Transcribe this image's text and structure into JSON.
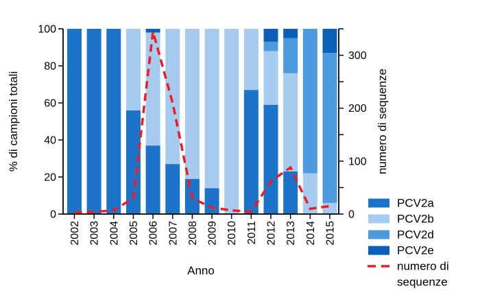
{
  "chart_data": {
    "type": "bar",
    "subtype": "stacked-100-with-line",
    "title": "",
    "xlabel": "Anno",
    "ylabel_left": "% di campioni totali",
    "ylabel_right": "numero di sequenze",
    "categories": [
      "2002",
      "2003",
      "2004",
      "2005",
      "2006",
      "2007",
      "2008",
      "2009",
      "2010",
      "2011",
      "2012",
      "2013",
      "2014",
      "2015"
    ],
    "series": [
      {
        "name": "PCV2a",
        "kind": "bar",
        "axis": "left",
        "color": "#1B74C8",
        "values": [
          100,
          100,
          100,
          56,
          37,
          27,
          19,
          14,
          0,
          67,
          59,
          23,
          0,
          0
        ]
      },
      {
        "name": "PCV2b",
        "kind": "bar",
        "axis": "left",
        "color": "#A6CBEE",
        "values": [
          0,
          0,
          0,
          44,
          61,
          73,
          81,
          86,
          100,
          33,
          29,
          53,
          22,
          6
        ]
      },
      {
        "name": "PCV2d",
        "kind": "bar",
        "axis": "left",
        "color": "#4D9BDC",
        "values": [
          0,
          0,
          0,
          0,
          0,
          0,
          0,
          0,
          0,
          0,
          5,
          19,
          78,
          81
        ]
      },
      {
        "name": "PCV2e",
        "kind": "bar",
        "axis": "left",
        "color": "#0C5FB8",
        "values": [
          0,
          0,
          0,
          0,
          2,
          0,
          0,
          0,
          0,
          0,
          7,
          5,
          0,
          13
        ]
      },
      {
        "name": "numero di sequenze",
        "kind": "line",
        "axis": "right",
        "color": "#EE1C25",
        "dashed": true,
        "values": [
          3,
          4,
          7,
          30,
          345,
          210,
          30,
          12,
          7,
          4,
          62,
          88,
          10,
          15
        ]
      }
    ],
    "axes": {
      "left": {
        "min": 0,
        "max": 100,
        "ticks": [
          0,
          20,
          40,
          60,
          80,
          100
        ]
      },
      "right": {
        "min": 0,
        "max": 350,
        "labeled_ticks": [
          0,
          100,
          200,
          300
        ],
        "minor_step": 50
      },
      "x_tick_rotation": -90,
      "grid": false
    },
    "legend": {
      "position": "bottom-right",
      "items": [
        {
          "label": "PCV2a",
          "swatch": "rect",
          "color": "#1B74C8"
        },
        {
          "label": "PCV2b",
          "swatch": "rect",
          "color": "#A6CBEE"
        },
        {
          "label": "PCV2d",
          "swatch": "rect",
          "color": "#4D9BDC"
        },
        {
          "label": "PCV2e",
          "swatch": "rect",
          "color": "#0C5FB8"
        },
        {
          "label": "numero di sequenze",
          "label_lines": [
            "numero di",
            "sequenze"
          ],
          "swatch": "dash",
          "color": "#EE1C25"
        }
      ]
    }
  }
}
